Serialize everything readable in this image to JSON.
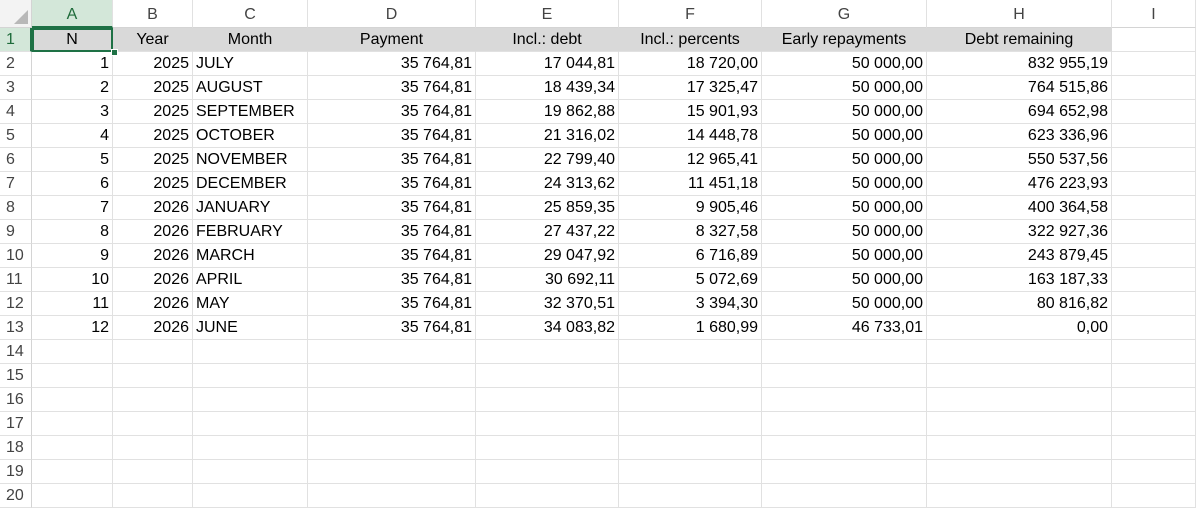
{
  "columns": [
    "A",
    "B",
    "C",
    "D",
    "E",
    "F",
    "G",
    "H",
    "I"
  ],
  "header": [
    "N",
    "Year",
    "Month",
    "Payment",
    "Incl.: debt",
    "Incl.: percents",
    "Early repayments",
    "Debt remaining"
  ],
  "rows": [
    [
      "1",
      "2025",
      "JULY",
      "35 764,81",
      "17 044,81",
      "18 720,00",
      "50 000,00",
      "832 955,19"
    ],
    [
      "2",
      "2025",
      "AUGUST",
      "35 764,81",
      "18 439,34",
      "17 325,47",
      "50 000,00",
      "764 515,86"
    ],
    [
      "3",
      "2025",
      "SEPTEMBER",
      "35 764,81",
      "19 862,88",
      "15 901,93",
      "50 000,00",
      "694 652,98"
    ],
    [
      "4",
      "2025",
      "OCTOBER",
      "35 764,81",
      "21 316,02",
      "14 448,78",
      "50 000,00",
      "623 336,96"
    ],
    [
      "5",
      "2025",
      "NOVEMBER",
      "35 764,81",
      "22 799,40",
      "12 965,41",
      "50 000,00",
      "550 537,56"
    ],
    [
      "6",
      "2025",
      "DECEMBER",
      "35 764,81",
      "24 313,62",
      "11 451,18",
      "50 000,00",
      "476 223,93"
    ],
    [
      "7",
      "2026",
      "JANUARY",
      "35 764,81",
      "25 859,35",
      "9 905,46",
      "50 000,00",
      "400 364,58"
    ],
    [
      "8",
      "2026",
      "FEBRUARY",
      "35 764,81",
      "27 437,22",
      "8 327,58",
      "50 000,00",
      "322 927,36"
    ],
    [
      "9",
      "2026",
      "MARCH",
      "35 764,81",
      "29 047,92",
      "6 716,89",
      "50 000,00",
      "243 879,45"
    ],
    [
      "10",
      "2026",
      "APRIL",
      "35 764,81",
      "30 692,11",
      "5 072,69",
      "50 000,00",
      "163 187,33"
    ],
    [
      "11",
      "2026",
      "MAY",
      "35 764,81",
      "32 370,51",
      "3 394,30",
      "50 000,00",
      "80 816,82"
    ],
    [
      "12",
      "2026",
      "JUNE",
      "35 764,81",
      "34 083,82",
      "1 680,99",
      "46 733,01",
      "0,00"
    ]
  ],
  "row_numbers": [
    "1",
    "2",
    "3",
    "4",
    "5",
    "6",
    "7",
    "8",
    "9",
    "10",
    "11",
    "12",
    "13",
    "14",
    "15",
    "16",
    "17",
    "18",
    "19",
    "20"
  ],
  "selected_cell": "A1",
  "colors": {
    "accent": "#1e7145",
    "selected_header_bg": "#d3e7d9",
    "header_fill": "#d9d9d9"
  }
}
